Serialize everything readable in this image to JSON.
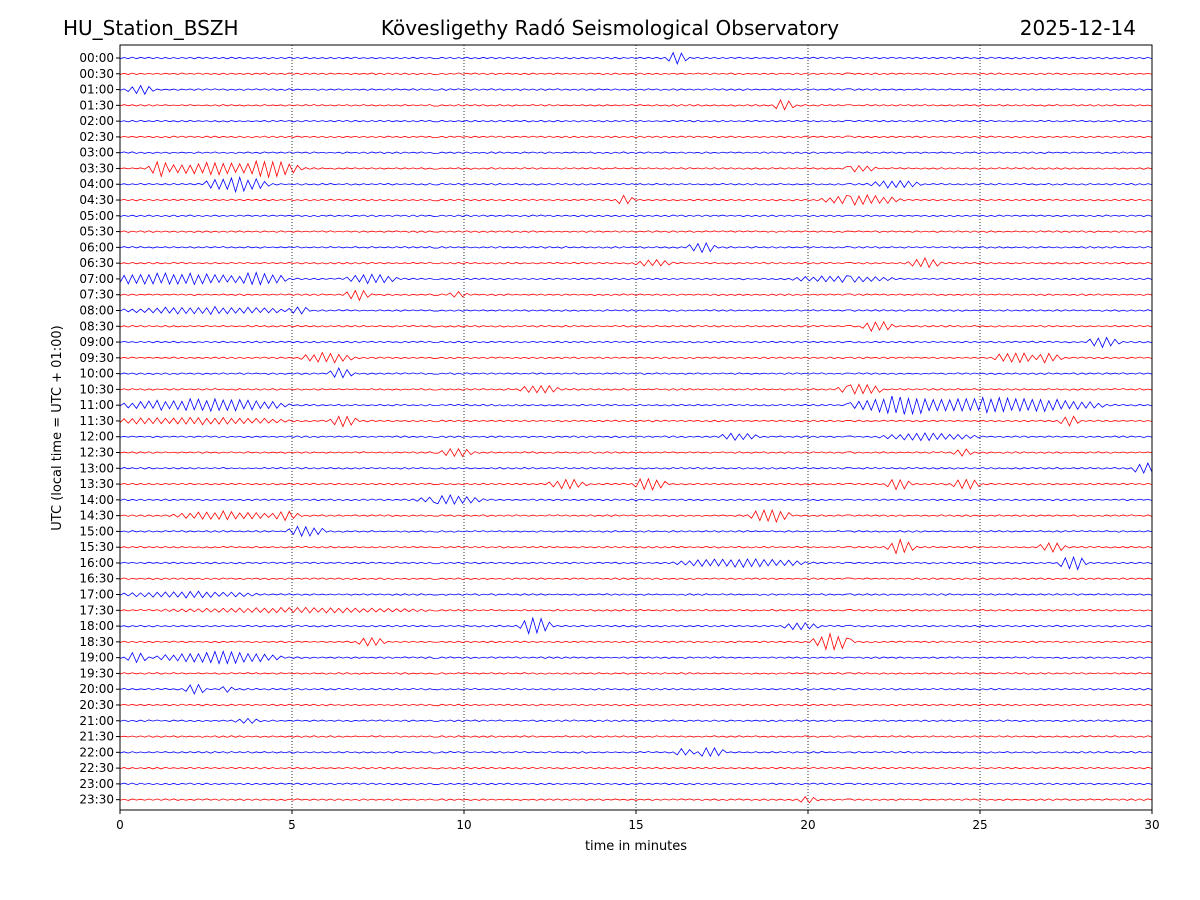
{
  "header": {
    "station": "HU_Station_BSZH",
    "observatory": "Kövesligethy Radó Seismological Observatory",
    "date": "2025-12-14"
  },
  "chart_data": {
    "type": "line",
    "title": "Kövesligethy Radó Seismological Observatory",
    "xlabel": "time in minutes",
    "ylabel": "UTC (local time = UTC + 01:00)",
    "xlim": [
      0,
      30
    ],
    "x_ticks": [
      "0",
      "5",
      "10",
      "15",
      "20",
      "25",
      "30"
    ],
    "x_tick_values": [
      0,
      5,
      10,
      15,
      20,
      25,
      30
    ],
    "grid": "vertical dotted lines at 5-minute ticks",
    "trace_colors": [
      "#0000ff",
      "#ff0000"
    ],
    "rows": [
      {
        "label": "00:00",
        "events": [
          {
            "t": 16.2,
            "amp": 0.6,
            "dur": 0.3
          }
        ]
      },
      {
        "label": "00:30",
        "events": []
      },
      {
        "label": "01:00",
        "events": [
          {
            "t": 0.6,
            "amp": 0.4,
            "dur": 0.4
          }
        ]
      },
      {
        "label": "01:30",
        "events": [
          {
            "t": 19.3,
            "amp": 0.5,
            "dur": 0.3
          }
        ]
      },
      {
        "label": "02:00",
        "events": []
      },
      {
        "label": "02:30",
        "events": []
      },
      {
        "label": "03:00",
        "events": []
      },
      {
        "label": "03:30",
        "events": [
          {
            "t": 1.1,
            "amp": 0.6,
            "dur": 0.3
          },
          {
            "t": 2.8,
            "amp": 0.5,
            "dur": 1.8
          },
          {
            "t": 4.5,
            "amp": 0.6,
            "dur": 0.8
          },
          {
            "t": 21.5,
            "amp": 0.3,
            "dur": 0.5
          }
        ]
      },
      {
        "label": "04:00",
        "events": [
          {
            "t": 3.4,
            "amp": 0.6,
            "dur": 1.0
          },
          {
            "t": 22.5,
            "amp": 0.3,
            "dur": 0.8
          }
        ]
      },
      {
        "label": "04:30",
        "events": [
          {
            "t": 14.7,
            "amp": 0.4,
            "dur": 0.3
          },
          {
            "t": 21.5,
            "amp": 0.4,
            "dur": 1.2
          }
        ]
      },
      {
        "label": "05:00",
        "events": []
      },
      {
        "label": "05:30",
        "events": []
      },
      {
        "label": "06:00",
        "events": [
          {
            "t": 16.9,
            "amp": 0.5,
            "dur": 0.4
          }
        ]
      },
      {
        "label": "06:30",
        "events": [
          {
            "t": 15.5,
            "amp": 0.25,
            "dur": 0.6
          },
          {
            "t": 23.4,
            "amp": 0.4,
            "dur": 0.5
          }
        ]
      },
      {
        "label": "07:00",
        "events": [
          {
            "t": 1.5,
            "amp": 0.5,
            "dur": 2.5
          },
          {
            "t": 4.2,
            "amp": 0.55,
            "dur": 0.7
          },
          {
            "t": 7.3,
            "amp": 0.4,
            "dur": 0.8
          },
          {
            "t": 21.0,
            "amp": 0.25,
            "dur": 1.5
          }
        ]
      },
      {
        "label": "07:30",
        "events": [
          {
            "t": 6.9,
            "amp": 0.45,
            "dur": 0.4
          },
          {
            "t": 9.8,
            "amp": 0.3,
            "dur": 0.3
          }
        ]
      },
      {
        "label": "08:00",
        "events": [
          {
            "t": 2.5,
            "amp": 0.3,
            "dur": 2.5
          },
          {
            "t": 5.2,
            "amp": 0.35,
            "dur": 0.3
          }
        ]
      },
      {
        "label": "08:30",
        "events": [
          {
            "t": 22.0,
            "amp": 0.45,
            "dur": 0.5
          }
        ]
      },
      {
        "label": "09:00",
        "events": [
          {
            "t": 28.6,
            "amp": 0.45,
            "dur": 0.5
          }
        ]
      },
      {
        "label": "09:30",
        "events": [
          {
            "t": 6.0,
            "amp": 0.45,
            "dur": 0.8
          },
          {
            "t": 26.0,
            "amp": 0.5,
            "dur": 0.6
          },
          {
            "t": 27.0,
            "amp": 0.45,
            "dur": 0.4
          }
        ]
      },
      {
        "label": "10:00",
        "events": [
          {
            "t": 6.4,
            "amp": 0.45,
            "dur": 0.4
          }
        ]
      },
      {
        "label": "10:30",
        "events": [
          {
            "t": 12.2,
            "amp": 0.35,
            "dur": 0.6
          },
          {
            "t": 21.5,
            "amp": 0.45,
            "dur": 0.7
          }
        ]
      },
      {
        "label": "11:00",
        "events": [
          {
            "t": 2.5,
            "amp": 0.55,
            "dur": 2.5
          },
          {
            "t": 22.3,
            "amp": 0.65,
            "dur": 1.2
          },
          {
            "t": 25.5,
            "amp": 0.65,
            "dur": 3.2
          }
        ]
      },
      {
        "label": "11:30",
        "events": [
          {
            "t": 2.0,
            "amp": 0.3,
            "dur": 3.0
          },
          {
            "t": 6.5,
            "amp": 0.5,
            "dur": 0.4
          },
          {
            "t": 27.6,
            "amp": 0.5,
            "dur": 0.3
          }
        ]
      },
      {
        "label": "12:00",
        "events": [
          {
            "t": 18.0,
            "amp": 0.3,
            "dur": 0.6
          },
          {
            "t": 23.5,
            "amp": 0.3,
            "dur": 1.5
          }
        ]
      },
      {
        "label": "12:30",
        "events": [
          {
            "t": 9.8,
            "amp": 0.35,
            "dur": 0.5
          },
          {
            "t": 24.5,
            "amp": 0.3,
            "dur": 0.3
          }
        ]
      },
      {
        "label": "13:00",
        "events": [
          {
            "t": 29.8,
            "amp": 0.55,
            "dur": 0.4
          }
        ]
      },
      {
        "label": "13:30",
        "events": [
          {
            "t": 13.0,
            "amp": 0.4,
            "dur": 0.6
          },
          {
            "t": 15.4,
            "amp": 0.55,
            "dur": 0.5
          },
          {
            "t": 22.6,
            "amp": 0.5,
            "dur": 0.4
          },
          {
            "t": 24.6,
            "amp": 0.5,
            "dur": 0.4
          }
        ]
      },
      {
        "label": "14:00",
        "events": [
          {
            "t": 9.6,
            "amp": 0.35,
            "dur": 1.0
          }
        ]
      },
      {
        "label": "14:30",
        "events": [
          {
            "t": 3.0,
            "amp": 0.35,
            "dur": 1.5
          },
          {
            "t": 4.8,
            "amp": 0.4,
            "dur": 0.4
          },
          {
            "t": 18.9,
            "amp": 0.65,
            "dur": 0.6
          }
        ]
      },
      {
        "label": "15:00",
        "events": [
          {
            "t": 5.4,
            "amp": 0.45,
            "dur": 0.6
          }
        ]
      },
      {
        "label": "15:30",
        "events": [
          {
            "t": 22.7,
            "amp": 0.65,
            "dur": 0.4
          },
          {
            "t": 27.1,
            "amp": 0.45,
            "dur": 0.4
          }
        ]
      },
      {
        "label": "16:00",
        "events": [
          {
            "t": 18.0,
            "amp": 0.35,
            "dur": 2.0
          },
          {
            "t": 27.7,
            "amp": 0.65,
            "dur": 0.4
          }
        ]
      },
      {
        "label": "16:30",
        "events": []
      },
      {
        "label": "17:00",
        "events": [
          {
            "t": 2.0,
            "amp": 0.25,
            "dur": 2.0
          }
        ]
      },
      {
        "label": "17:30",
        "events": [
          {
            "t": 5.0,
            "amp": 0.2,
            "dur": 4.0
          }
        ]
      },
      {
        "label": "18:00",
        "events": [
          {
            "t": 12.1,
            "amp": 0.8,
            "dur": 0.5
          },
          {
            "t": 19.8,
            "amp": 0.3,
            "dur": 0.6
          }
        ]
      },
      {
        "label": "18:30",
        "events": [
          {
            "t": 7.3,
            "amp": 0.4,
            "dur": 0.4
          },
          {
            "t": 20.7,
            "amp": 0.7,
            "dur": 0.6
          }
        ]
      },
      {
        "label": "19:00",
        "events": [
          {
            "t": 0.5,
            "amp": 0.5,
            "dur": 0.3
          },
          {
            "t": 2.9,
            "amp": 0.5,
            "dur": 1.9
          }
        ]
      },
      {
        "label": "19:30",
        "events": []
      },
      {
        "label": "20:00",
        "events": [
          {
            "t": 2.2,
            "amp": 0.5,
            "dur": 0.3
          },
          {
            "t": 3.1,
            "amp": 0.3,
            "dur": 0.2
          }
        ]
      },
      {
        "label": "20:30",
        "events": []
      },
      {
        "label": "21:00",
        "events": [
          {
            "t": 3.7,
            "amp": 0.2,
            "dur": 0.4
          }
        ]
      },
      {
        "label": "21:30",
        "events": []
      },
      {
        "label": "22:00",
        "events": [
          {
            "t": 16.4,
            "amp": 0.3,
            "dur": 0.3
          },
          {
            "t": 17.2,
            "amp": 0.5,
            "dur": 0.4
          }
        ]
      },
      {
        "label": "22:30",
        "events": []
      },
      {
        "label": "23:00",
        "events": []
      },
      {
        "label": "23:30",
        "events": [
          {
            "t": 20.0,
            "amp": 0.25,
            "dur": 0.3
          }
        ]
      }
    ]
  }
}
